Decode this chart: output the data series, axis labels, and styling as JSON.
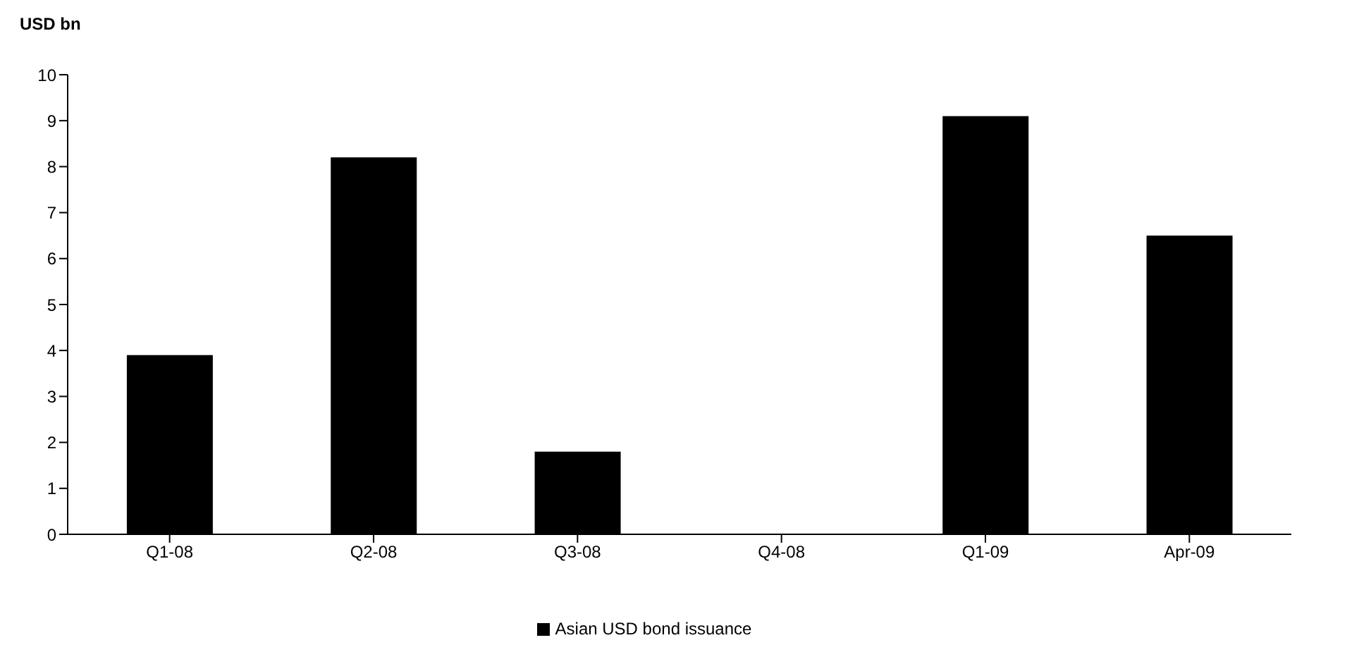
{
  "chart_data": {
    "type": "bar",
    "ylabel": "USD bn",
    "categories": [
      "Q1-08",
      "Q2-08",
      "Q3-08",
      "Q4-08",
      "Q1-09",
      "Apr-09"
    ],
    "series": [
      {
        "name": "Asian USD bond issuance",
        "color": "#000000",
        "values": [
          3.9,
          8.2,
          1.8,
          0,
          9.1,
          6.5
        ]
      }
    ],
    "ylim": [
      0,
      10
    ],
    "yticks": [
      0,
      1,
      2,
      3,
      4,
      5,
      6,
      7,
      8,
      9,
      10
    ],
    "grid": false,
    "legend": "bottom"
  }
}
